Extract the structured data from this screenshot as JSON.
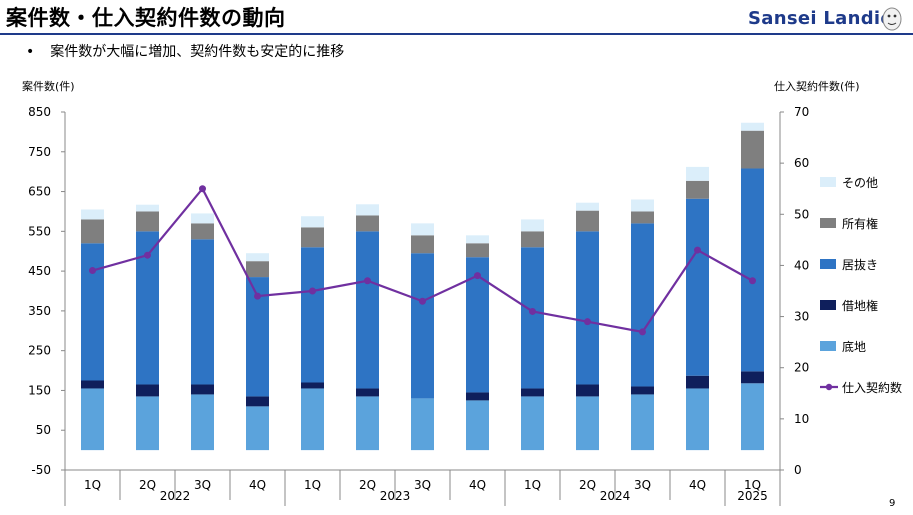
{
  "header": {
    "title": "案件数・仕入契約件数の動向",
    "logo_text": "Sansei Landic",
    "logo_icon": "mascot-icon"
  },
  "bullet": "案件数が大幅に増加、契約件数も安定的に推移",
  "page_number": "9",
  "colors": {
    "brand": "#1e3a8a",
    "sokochi": "#5ba3dc",
    "shakuchi": "#0f1f5c",
    "idonuki": "#2e74c4",
    "shoyu": "#7f7f7f",
    "sonota": "#dbeefa",
    "line": "#7030a0"
  },
  "chart_data": {
    "type": "bar",
    "stacked": true,
    "ylabel": "案件数(件)",
    "y2label": "仕入契約件数(件)",
    "ylim": [
      -50,
      850
    ],
    "yticks": [
      -50,
      50,
      150,
      250,
      350,
      450,
      550,
      650,
      750,
      850
    ],
    "y2lim": [
      0,
      70
    ],
    "y2ticks": [
      0,
      10,
      20,
      30,
      40,
      50,
      60,
      70
    ],
    "categories": [
      "1Q",
      "2Q",
      "3Q",
      "4Q",
      "1Q",
      "2Q",
      "3Q",
      "4Q",
      "1Q",
      "2Q",
      "3Q",
      "4Q",
      "1Q"
    ],
    "years": [
      {
        "label": "2022",
        "count": 4
      },
      {
        "label": "2023",
        "count": 4
      },
      {
        "label": "2024",
        "count": 4
      },
      {
        "label": "2025",
        "count": 1
      }
    ],
    "legend_position": "right",
    "series": [
      {
        "name": "底地",
        "values": [
          155,
          135,
          140,
          110,
          155,
          135,
          130,
          125,
          135,
          135,
          140,
          155,
          168
        ]
      },
      {
        "name": "借地権",
        "values": [
          20,
          30,
          25,
          25,
          15,
          20,
          0,
          20,
          20,
          30,
          20,
          32,
          30
        ]
      },
      {
        "name": "居抜き",
        "values": [
          345,
          385,
          365,
          300,
          340,
          395,
          365,
          340,
          355,
          385,
          410,
          445,
          510
        ]
      },
      {
        "name": "所有権",
        "values": [
          60,
          50,
          40,
          40,
          50,
          40,
          45,
          35,
          40,
          52,
          30,
          45,
          95
        ]
      },
      {
        "name": "その他",
        "values": [
          25,
          17,
          25,
          20,
          28,
          28,
          30,
          20,
          30,
          20,
          30,
          35,
          20
        ]
      }
    ],
    "line_series": {
      "name": "仕入契約数",
      "axis": "right",
      "values": [
        39,
        42,
        55,
        34,
        35,
        37,
        33,
        38,
        31,
        29,
        27,
        43,
        37
      ]
    }
  }
}
